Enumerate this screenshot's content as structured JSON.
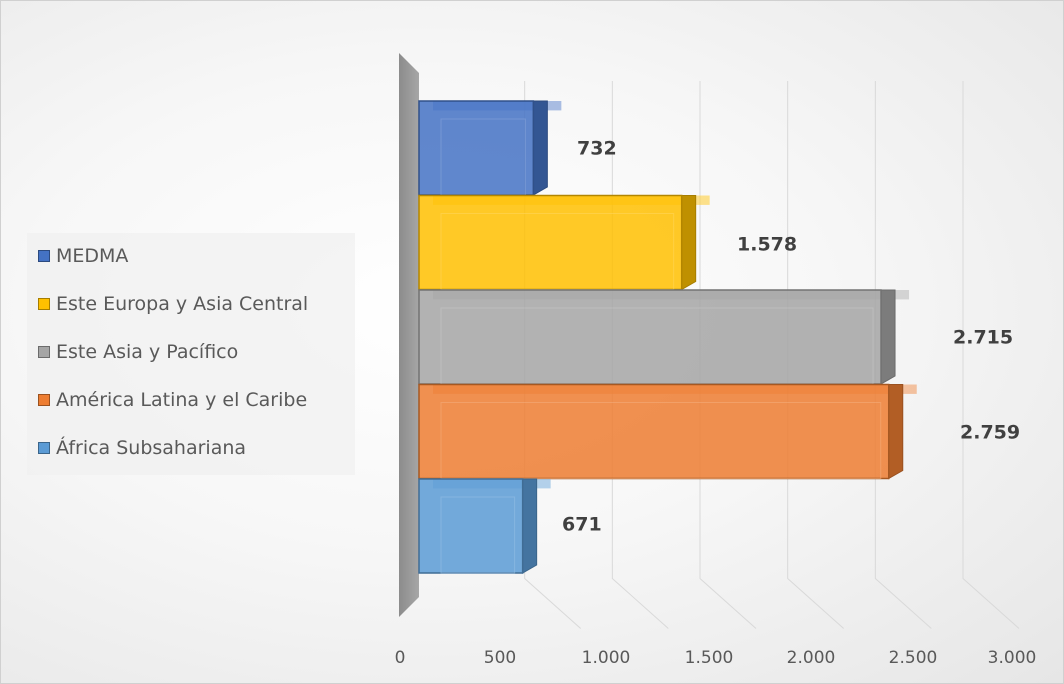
{
  "chart_data": {
    "type": "bar",
    "orientation": "horizontal",
    "style": "3d-clustered-bar",
    "categories": [
      "MEDMA",
      "Este Europa y Asia Central",
      "Este Asia y Pacífico",
      "América Latina y el Caribe",
      "África Subsahariana"
    ],
    "values": [
      732,
      1578,
      2715,
      2759,
      671
    ],
    "value_labels": [
      "732",
      "1.578",
      "2.715",
      "2.759",
      "671"
    ],
    "colors": [
      "#4472C4",
      "#FFC000",
      "#A5A5A5",
      "#ED7D31",
      "#5B9BD5"
    ],
    "xlim": [
      0,
      3000
    ],
    "xticks": [
      0,
      500,
      1000,
      1500,
      2000,
      2500,
      3000
    ],
    "xtick_labels": [
      "0",
      "500",
      "1.000",
      "1.500",
      "2.000",
      "2.500",
      "3.000"
    ],
    "title": "",
    "xlabel": "",
    "ylabel": "",
    "grid": true,
    "legend_position": "left"
  }
}
